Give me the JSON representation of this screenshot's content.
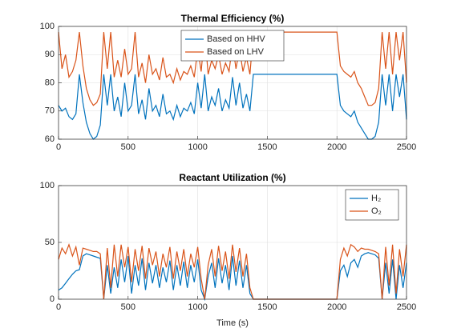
{
  "chart_data": [
    {
      "type": "line",
      "title": "Thermal Efficiency (%)",
      "grid": true,
      "legend": "north",
      "x": [
        0,
        25,
        50,
        75,
        100,
        125,
        150,
        175,
        200,
        225,
        250,
        275,
        300,
        325,
        350,
        375,
        400,
        425,
        450,
        475,
        500,
        525,
        550,
        575,
        600,
        625,
        650,
        675,
        700,
        725,
        750,
        775,
        800,
        825,
        850,
        875,
        900,
        925,
        950,
        975,
        1000,
        1025,
        1050,
        1075,
        1100,
        1125,
        1150,
        1175,
        1200,
        1225,
        1250,
        1275,
        1300,
        1325,
        1350,
        1375,
        1400,
        1425,
        1450,
        1475,
        1500,
        1525,
        1550,
        1575,
        1600,
        1625,
        1650,
        1675,
        1700,
        1725,
        1750,
        1775,
        1800,
        1825,
        1850,
        1875,
        1900,
        1925,
        1950,
        1975,
        2000,
        2025,
        2050,
        2075,
        2100,
        2125,
        2150,
        2175,
        2200,
        2225,
        2250,
        2275,
        2300,
        2325,
        2350,
        2375,
        2400,
        2425,
        2450,
        2475,
        2500
      ],
      "xlim": [
        0,
        2500
      ],
      "xticks": [
        0,
        500,
        1000,
        1500,
        2000,
        2500
      ],
      "ylim": [
        60,
        100
      ],
      "yticks": [
        60,
        70,
        80,
        90,
        100
      ],
      "series": [
        {
          "name": "Based on HHV",
          "color": "#0072BD",
          "values": [
            72,
            70,
            71,
            68,
            67,
            69,
            83,
            73,
            66,
            62,
            60,
            61,
            65,
            83,
            72,
            83,
            70,
            75,
            68,
            80,
            70,
            72,
            83,
            69,
            74,
            67,
            78,
            70,
            72,
            68,
            76,
            69,
            70,
            67,
            72,
            68,
            71,
            70,
            73,
            69,
            80,
            71,
            83,
            70,
            75,
            72,
            78,
            70,
            74,
            71,
            82,
            72,
            80,
            71,
            76,
            70,
            83,
            83,
            83,
            83,
            83,
            83,
            83,
            83,
            83,
            83,
            83,
            83,
            83,
            83,
            83,
            83,
            83,
            83,
            83,
            83,
            83,
            83,
            83,
            83,
            83,
            72,
            70,
            69,
            68,
            70,
            66,
            64,
            62,
            60,
            60,
            61,
            66,
            83,
            72,
            83,
            70,
            83,
            75,
            83,
            67
          ]
        },
        {
          "name": "Based on LHV",
          "color": "#D95319",
          "values": [
            98,
            85,
            90,
            82,
            84,
            88,
            98,
            86,
            78,
            74,
            72,
            73,
            76,
            98,
            85,
            98,
            82,
            88,
            82,
            92,
            83,
            85,
            98,
            82,
            87,
            80,
            90,
            83,
            85,
            81,
            89,
            82,
            83,
            80,
            85,
            81,
            84,
            83,
            86,
            82,
            92,
            84,
            98,
            83,
            88,
            85,
            90,
            83,
            87,
            84,
            94,
            85,
            92,
            84,
            89,
            83,
            98,
            98,
            98,
            98,
            98,
            98,
            98,
            98,
            98,
            98,
            98,
            98,
            98,
            98,
            98,
            98,
            98,
            98,
            98,
            98,
            98,
            98,
            98,
            98,
            98,
            86,
            84,
            83,
            82,
            84,
            80,
            78,
            75,
            72,
            72,
            73,
            78,
            98,
            85,
            98,
            83,
            98,
            88,
            98,
            80
          ]
        }
      ]
    },
    {
      "type": "line",
      "title": "Reactant Utilization (%)",
      "xlabel": "Time (s)",
      "grid": true,
      "legend": "northeast",
      "x": [
        0,
        25,
        50,
        75,
        100,
        125,
        150,
        175,
        200,
        225,
        250,
        275,
        300,
        325,
        350,
        375,
        400,
        425,
        450,
        475,
        500,
        525,
        550,
        575,
        600,
        625,
        650,
        675,
        700,
        725,
        750,
        775,
        800,
        825,
        850,
        875,
        900,
        925,
        950,
        975,
        1000,
        1025,
        1050,
        1075,
        1100,
        1125,
        1150,
        1175,
        1200,
        1225,
        1250,
        1275,
        1300,
        1325,
        1350,
        1375,
        1400,
        1425,
        1450,
        1475,
        1500,
        1525,
        1550,
        1575,
        1600,
        1625,
        1650,
        1675,
        1700,
        1725,
        1750,
        1775,
        1800,
        1825,
        1850,
        1875,
        1900,
        1925,
        1950,
        1975,
        2000,
        2025,
        2050,
        2075,
        2100,
        2125,
        2150,
        2175,
        2200,
        2225,
        2250,
        2275,
        2300,
        2325,
        2350,
        2375,
        2400,
        2425,
        2450,
        2475,
        2500
      ],
      "xlim": [
        0,
        2500
      ],
      "xticks": [
        0,
        500,
        1000,
        1500,
        2000,
        2500
      ],
      "ylim": [
        0,
        100
      ],
      "yticks": [
        0,
        50,
        100
      ],
      "series": [
        {
          "name": "H₂",
          "color": "#0072BD",
          "values": [
            8,
            10,
            14,
            18,
            22,
            25,
            26,
            38,
            40,
            39,
            38,
            37,
            36,
            0,
            30,
            5,
            28,
            10,
            35,
            15,
            38,
            5,
            30,
            12,
            36,
            8,
            32,
            14,
            30,
            10,
            28,
            15,
            34,
            8,
            30,
            12,
            33,
            10,
            30,
            15,
            35,
            8,
            0,
            20,
            32,
            10,
            36,
            14,
            30,
            8,
            38,
            12,
            34,
            10,
            30,
            5,
            0,
            0,
            0,
            0,
            0,
            0,
            0,
            0,
            0,
            0,
            0,
            0,
            0,
            0,
            0,
            0,
            0,
            0,
            0,
            0,
            0,
            0,
            0,
            0,
            0,
            25,
            30,
            20,
            32,
            35,
            28,
            38,
            40,
            41,
            40,
            39,
            36,
            0,
            32,
            5,
            35,
            0,
            30,
            10,
            32
          ]
        },
        {
          "name": "O₂",
          "color": "#D95319",
          "values": [
            35,
            45,
            40,
            48,
            38,
            46,
            30,
            45,
            44,
            43,
            42,
            42,
            40,
            0,
            45,
            10,
            48,
            20,
            48,
            28,
            46,
            15,
            44,
            25,
            47,
            18,
            45,
            30,
            42,
            20,
            40,
            28,
            46,
            18,
            42,
            25,
            44,
            20,
            40,
            28,
            46,
            18,
            0,
            30,
            44,
            20,
            47,
            25,
            42,
            18,
            48,
            24,
            45,
            20,
            40,
            10,
            0,
            0,
            0,
            0,
            0,
            0,
            0,
            0,
            0,
            0,
            0,
            0,
            0,
            0,
            0,
            0,
            0,
            0,
            0,
            0,
            0,
            0,
            0,
            0,
            0,
            35,
            45,
            38,
            48,
            46,
            42,
            45,
            44,
            44,
            43,
            42,
            40,
            0,
            46,
            12,
            48,
            5,
            44,
            20,
            48
          ]
        }
      ]
    }
  ]
}
